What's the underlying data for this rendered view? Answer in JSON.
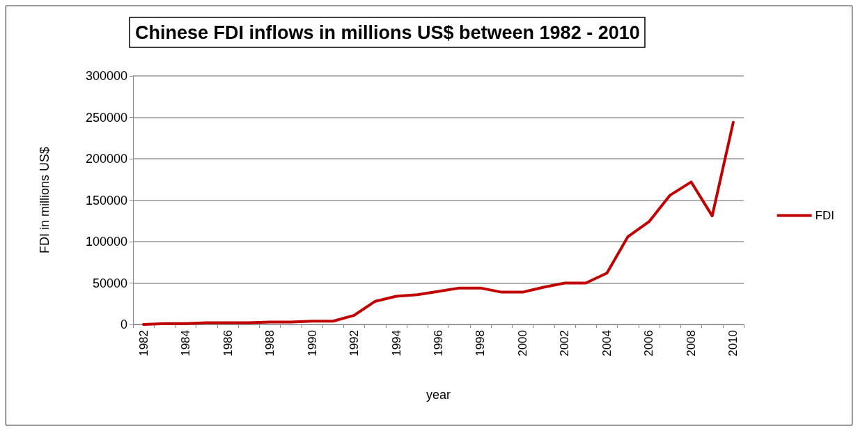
{
  "chart_data": {
    "type": "line",
    "title": "Chinese FDI inflows in millions US$ between 1982 - 2010",
    "xlabel": "year",
    "ylabel": "FDI in millions US$",
    "categories": [
      "1982",
      null,
      "1984",
      null,
      "1986",
      null,
      "1988",
      null,
      "1990",
      null,
      "1992",
      null,
      "1994",
      null,
      "1996",
      null,
      "1998",
      null,
      "2000",
      null,
      "2002",
      null,
      "2004",
      null,
      "2006",
      null,
      "2008",
      null,
      "2010"
    ],
    "series": [
      {
        "name": "FDI",
        "color": "#c00000",
        "values": [
          0,
          1000,
          1000,
          2000,
          2000,
          2000,
          3000,
          3000,
          4000,
          4000,
          11000,
          28000,
          34000,
          36000,
          40000,
          44000,
          44000,
          39000,
          39000,
          45000,
          50000,
          50000,
          62000,
          106000,
          124000,
          156000,
          172000,
          131000,
          244000
        ]
      }
    ],
    "ylim": [
      0,
      300000
    ],
    "yticks": [
      0,
      50000,
      100000,
      150000,
      200000,
      250000,
      300000
    ],
    "grid": "y",
    "legend": "right",
    "marker": "none",
    "line_style": "solid"
  }
}
